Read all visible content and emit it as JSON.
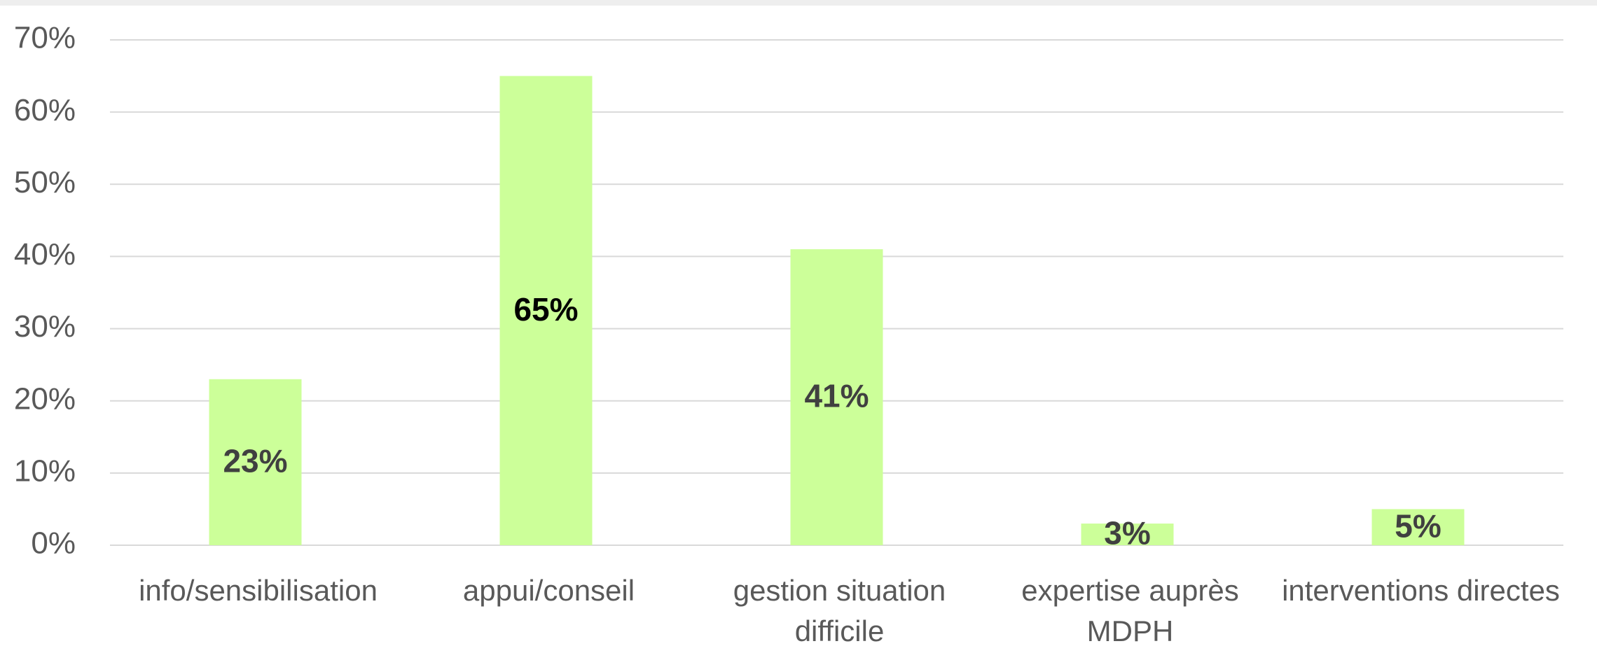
{
  "chart_data": {
    "type": "bar",
    "categories": [
      "info/sensibilisation",
      "appui/conseil",
      "gestion situation difficile",
      "expertise auprès MDPH",
      "interventions directes"
    ],
    "values": [
      23,
      65,
      41,
      3,
      5
    ],
    "value_labels": [
      "23%",
      "65%",
      "41%",
      "3%",
      "5%"
    ],
    "color": "#ccff99",
    "ylim": [
      0,
      70
    ],
    "yticks": [
      {
        "value": 0,
        "label": "0%"
      },
      {
        "value": 10,
        "label": "10%"
      },
      {
        "value": 20,
        "label": "20%"
      },
      {
        "value": 30,
        "label": "30%"
      },
      {
        "value": 40,
        "label": "40%"
      },
      {
        "value": 50,
        "label": "50%"
      },
      {
        "value": 60,
        "label": "60%"
      },
      {
        "value": 70,
        "label": "70%"
      }
    ],
    "grid": true
  }
}
